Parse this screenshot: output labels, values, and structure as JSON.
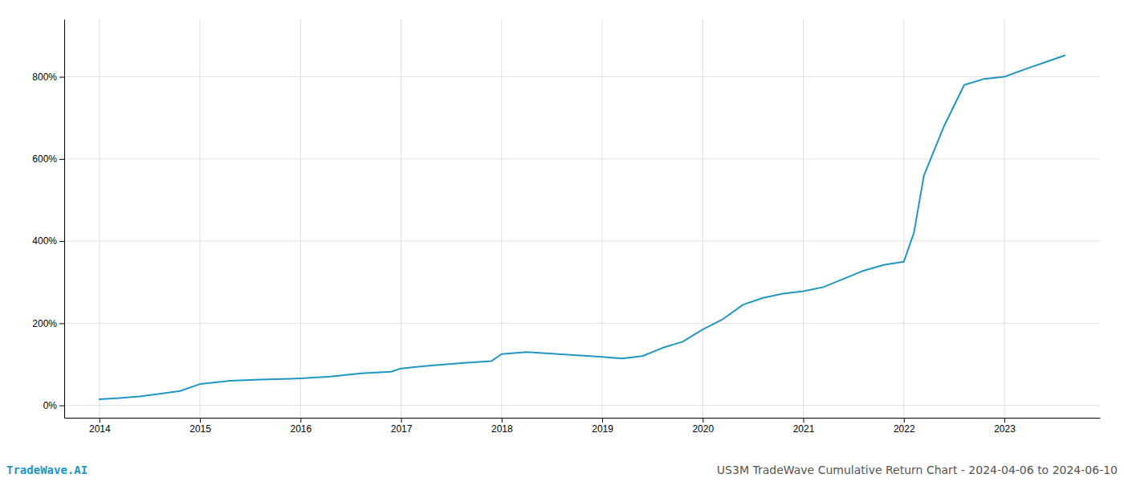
{
  "chart_data": {
    "type": "line",
    "title": "US3M TradeWave Cumulative Return Chart - 2024-04-06 to 2024-06-10",
    "annotations": [
      "TradeWave.AI"
    ],
    "color": "#2196c4",
    "x": [
      2014.0,
      2014.2,
      2014.4,
      2014.6,
      2014.8,
      2015.0,
      2015.3,
      2015.6,
      2015.9,
      2016.0,
      2016.3,
      2016.6,
      2016.9,
      2017.0,
      2017.3,
      2017.6,
      2017.9,
      2018.0,
      2018.25,
      2018.5,
      2018.75,
      2019.0,
      2019.2,
      2019.4,
      2019.6,
      2019.8,
      2020.0,
      2020.2,
      2020.4,
      2020.6,
      2020.8,
      2021.0,
      2021.2,
      2021.4,
      2021.6,
      2021.8,
      2022.0,
      2022.1,
      2022.2,
      2022.4,
      2022.6,
      2022.8,
      2023.0,
      2023.2,
      2023.4,
      2023.6
    ],
    "values": [
      15,
      18,
      22,
      28,
      35,
      52,
      60,
      63,
      65,
      66,
      70,
      78,
      82,
      90,
      97,
      103,
      108,
      125,
      130,
      126,
      122,
      118,
      114,
      120,
      140,
      155,
      185,
      210,
      245,
      262,
      272,
      278,
      288,
      308,
      328,
      342,
      350,
      420,
      560,
      680,
      780,
      795,
      800,
      818,
      835,
      852
    ],
    "xlim": [
      2013.65,
      2023.95
    ],
    "ylim": [
      -30,
      940
    ],
    "xticks": [
      2014,
      2015,
      2016,
      2017,
      2018,
      2019,
      2020,
      2021,
      2022,
      2023
    ],
    "yticks": [
      {
        "value": 0,
        "label": "0%"
      },
      {
        "value": 200,
        "label": "200%"
      },
      {
        "value": 400,
        "label": "400%"
      },
      {
        "value": 600,
        "label": "600%"
      },
      {
        "value": 800,
        "label": "800%"
      }
    ],
    "grid": true
  }
}
